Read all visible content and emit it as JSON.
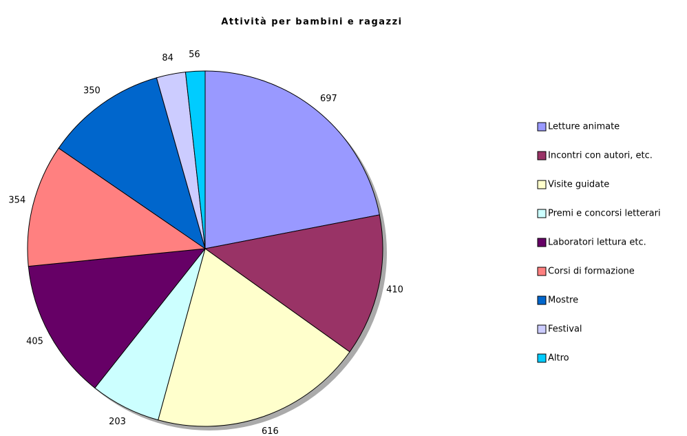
{
  "chart_data": {
    "type": "pie",
    "title": "Attività per bambini e ragazzi",
    "categories": [
      "Letture animate",
      "Incontri con autori, etc.",
      "Visite guidate",
      "Premi e concorsi letterari",
      "Laboratori lettura etc.",
      "Corsi di formazione",
      "Mostre",
      "Festival",
      "Altro"
    ],
    "values": [
      697,
      410,
      616,
      203,
      405,
      354,
      350,
      84,
      56
    ],
    "colors": [
      "#9999ff",
      "#993366",
      "#ffffcc",
      "#ccffff",
      "#660066",
      "#ff8080",
      "#0066cc",
      "#ccccff",
      "#00ccff"
    ],
    "legend": "right"
  }
}
